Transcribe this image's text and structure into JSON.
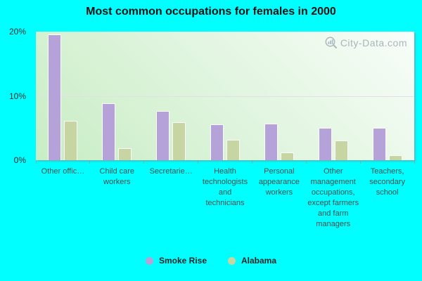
{
  "title": "Most common occupations for females in 2000",
  "watermark": {
    "text": "City-Data.com",
    "icon": "magnifier-chart-icon"
  },
  "y_axis": {
    "ticks": [
      "20%",
      "10%",
      "0%"
    ]
  },
  "legend": {
    "items": [
      {
        "label": "Smoke Rise",
        "color": "#b5a2d9"
      },
      {
        "label": "Alabama",
        "color": "#c6d5a1"
      }
    ]
  },
  "colors": {
    "page_background": "#00ffff",
    "plot_gradient_light": "#f8fdf9",
    "plot_gradient_green": "#c8edc4",
    "smoke_rise_bar": "#b5a2d9",
    "alabama_bar": "#c6d5a1",
    "gridline": "#e3dce9",
    "axis_text": "#3e4e4e",
    "title_text": "#111111"
  },
  "chart_data": {
    "type": "bar",
    "title": "Most common occupations for females in 2000",
    "categories": [
      "Other offic…",
      "Child care workers",
      "Secretarie…",
      "Health technologists and technicians",
      "Personal appearance workers",
      "Other management occupations, except farmers and farm managers",
      "Teachers, secondary school"
    ],
    "series": [
      {
        "name": "Smoke Rise",
        "color": "#b5a2d9",
        "values": [
          19.6,
          8.9,
          7.7,
          5.6,
          5.7,
          5.0,
          5.0
        ]
      },
      {
        "name": "Alabama",
        "color": "#c6d5a1",
        "values": [
          6.1,
          1.9,
          5.9,
          3.2,
          1.2,
          3.1,
          0.8
        ]
      }
    ],
    "xlabel": "",
    "ylabel": "",
    "ylim": [
      0,
      20
    ],
    "y_tick_labels": [
      "0%",
      "10%",
      "20%"
    ],
    "grid": "horizontal line at 10%",
    "legend_position": "bottom"
  }
}
